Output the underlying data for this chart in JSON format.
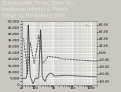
{
  "title": "Stereophile Thrax Siren Im-\npedance (ohms) & Phase\n(deg) vs Frequency (Hz)",
  "title_fontsize": 4.8,
  "title_color": "#e8e8e8",
  "title_bg": "#444444",
  "bg_color": "#c8c8c0",
  "plot_bg": "#d4d4cc",
  "grid_color": "#ffffff",
  "left_ylim": [
    0,
    50000
  ],
  "left_yticks": [
    0,
    5000,
    10000,
    15000,
    20000,
    25000,
    30000,
    35000,
    40000,
    45000,
    50000
  ],
  "left_yticklabels": [
    "0",
    "5,000",
    "10,000",
    "15,000",
    "20,000",
    "25,000",
    "30,000",
    "35,000",
    "40,000",
    "45,000",
    "50,000"
  ],
  "right_ylim": [
    -90,
    90
  ],
  "right_yticks": [
    -80,
    -60,
    -40,
    -20,
    0,
    20,
    40,
    60,
    80
  ],
  "right_yticklabels": [
    "-80.00",
    "-60.00",
    "-40.00",
    "-20.00",
    "0.00",
    "20.00",
    "40.00",
    "60.00",
    "80.00"
  ],
  "xmin": 20,
  "xmax": 200000,
  "xticks": [
    20,
    100,
    1000,
    10000,
    100000
  ],
  "xticklabels": [
    "20",
    "100",
    "1k",
    "10k",
    "100k"
  ],
  "impedance_color": "#444444",
  "phase_color": "#444444",
  "line_width": 0.7,
  "tick_fontsize": 3.2,
  "annotation_color": "#888888"
}
